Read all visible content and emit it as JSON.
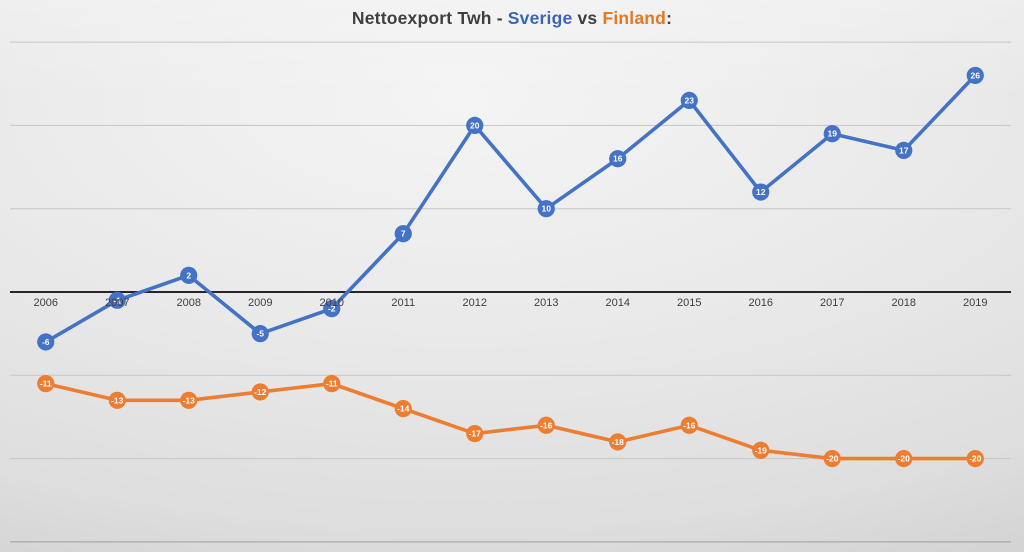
{
  "title": {
    "prefix": "Nettoexport Twh - ",
    "sverige": "Sverige",
    "vs": " vs ",
    "finland": "Finland",
    "colon": ":"
  },
  "colors": {
    "sverige_blue": "#4472C4",
    "finland_orange": "#ED7D31",
    "title_gray": "#3F3F3F",
    "axis_dark": "#262626",
    "gridline_light": "#C6C6C6",
    "gridline_bottom": "#9E9E9E",
    "year_label": "#3F3F3F",
    "marker_text": "#FFFFFF"
  },
  "chart_data": {
    "type": "line",
    "title": "Nettoexport Twh - Sverige vs Finland:",
    "x": [
      "2006",
      "2007",
      "2008",
      "2009",
      "2010",
      "2011",
      "2012",
      "2013",
      "2014",
      "2015",
      "2016",
      "2017",
      "2018",
      "2019"
    ],
    "series": [
      {
        "name": "Sverige",
        "color": "#4472C4",
        "values": [
          -6,
          -1,
          2,
          -5,
          -2,
          7,
          20,
          10,
          16,
          23,
          12,
          19,
          17,
          26
        ]
      },
      {
        "name": "Finland",
        "color": "#ED7D31",
        "values": [
          -11,
          -13,
          -13,
          -12,
          -11,
          -14,
          -17,
          -16,
          -18,
          -16,
          -19,
          -20,
          -20,
          -20
        ]
      }
    ],
    "ylim": [
      -31,
      35
    ],
    "gridline_values": [
      30,
      20,
      10,
      0,
      -10,
      -20,
      -30
    ],
    "grid": true,
    "legend_position": "none",
    "data_labels": true
  }
}
